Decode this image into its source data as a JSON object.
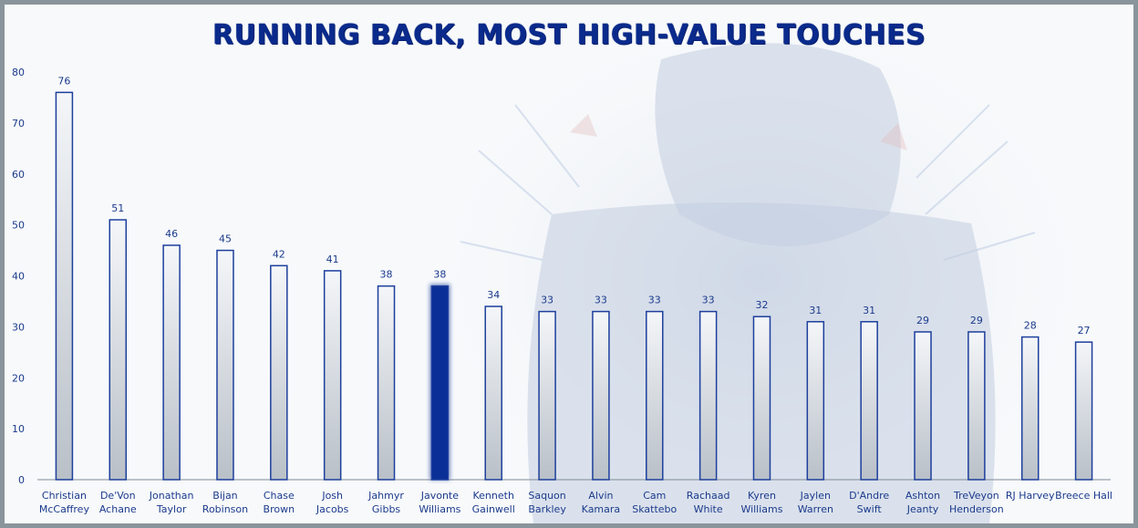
{
  "chart_data": {
    "type": "bar",
    "title": "RUNNING BACK, MOST HIGH-VALUE TOUCHES",
    "xlabel": "",
    "ylabel": "",
    "ylim": [
      0,
      80
    ],
    "yticks": [
      0,
      10,
      20,
      30,
      40,
      50,
      60,
      70,
      80
    ],
    "grid": false,
    "legend": "none",
    "categories": [
      [
        "Christian",
        "McCaffrey"
      ],
      [
        "De'Von",
        "Achane"
      ],
      [
        "Jonathan",
        "Taylor"
      ],
      [
        "Bijan",
        "Robinson"
      ],
      [
        "Chase",
        "Brown"
      ],
      [
        "Josh",
        "Jacobs"
      ],
      [
        "Jahmyr",
        "Gibbs"
      ],
      [
        "Javonte",
        "Williams"
      ],
      [
        "Kenneth",
        "Gainwell"
      ],
      [
        "Saquon",
        "Barkley"
      ],
      [
        "Alvin",
        "Kamara"
      ],
      [
        "Cam",
        "Skattebo"
      ],
      [
        "Rachaad",
        "White"
      ],
      [
        "Kyren",
        "Williams"
      ],
      [
        "Jaylen",
        "Warren"
      ],
      [
        "D'Andre",
        "Swift"
      ],
      [
        "Ashton",
        "Jeanty"
      ],
      [
        "TreVeyon",
        "Henderson"
      ],
      [
        "RJ Harvey"
      ],
      [
        "Breece Hall"
      ]
    ],
    "values": [
      76,
      51,
      46,
      45,
      42,
      41,
      38,
      38,
      34,
      33,
      33,
      33,
      33,
      32,
      31,
      31,
      29,
      29,
      28,
      27
    ],
    "highlight_index": 7,
    "colors": {
      "bar_outline": "#1d3f9c",
      "bar_fill_top": "#f4f6f9",
      "bar_fill_bottom": "#b9c0c8",
      "highlight_fill": "#0a2f96",
      "axis": "#7f8a98"
    }
  }
}
